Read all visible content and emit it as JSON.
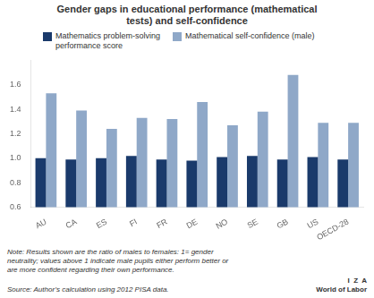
{
  "chart_data": {
    "type": "bar",
    "title": "Gender gaps in educational performance (mathematical\ntests) and self-confidence",
    "categories": [
      "AU",
      "CA",
      "ES",
      "FI",
      "FR",
      "DE",
      "NO",
      "SE",
      "GB",
      "US",
      "OECD-28"
    ],
    "series": [
      {
        "name": "Mathematics problem-solving\nperformance score",
        "color": "#1a3a6b",
        "values": [
          1.0,
          0.99,
          1.0,
          1.02,
          0.99,
          0.98,
          1.01,
          1.02,
          0.99,
          1.01,
          0.99
        ]
      },
      {
        "name": "Mathematical self-confidence (male)",
        "color": "#8fa8c8",
        "values": [
          1.53,
          1.39,
          1.24,
          1.33,
          1.32,
          1.46,
          1.27,
          1.38,
          1.68,
          1.29,
          1.29
        ]
      }
    ],
    "ylim": [
      0.6,
      1.8
    ],
    "yticks": [
      0.6,
      0.8,
      {
        "value": 1.0,
        "label": "1.0"
      },
      1.2,
      1.4,
      1.6
    ],
    "grid": false,
    "legend": "upper left",
    "annotations": [
      "Note: Results shown are the ratio of males to females: 1= gender\nneutrality; values above 1 indicate male pupils either perform better or\nare more confident regarding their own performance.",
      "Source: Author’s calculation using 2012 PISA data.",
      "I  Z  A",
      "World of Labor"
    ]
  }
}
